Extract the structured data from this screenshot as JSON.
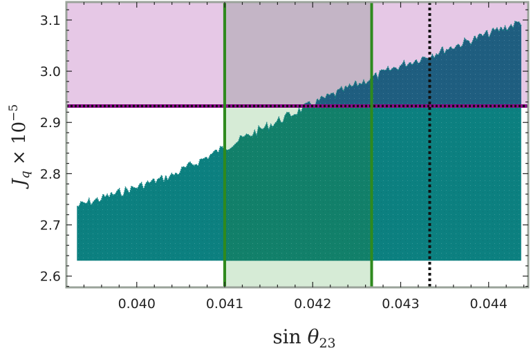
{
  "chart_data": {
    "type": "scatter",
    "xlabel": "sin θ23",
    "ylabel": "J_q × 10^-5",
    "ylabel_parts": {
      "symbol": "J",
      "subscript": "q",
      "times": " × 10",
      "exponent": "−5"
    },
    "xlabel_parts": {
      "func": "sin ",
      "symbol": "θ",
      "subscript": "23"
    },
    "xlim": [
      0.0392,
      0.04445
    ],
    "ylim": [
      2.578,
      3.135
    ],
    "xticks": [
      0.04,
      0.041,
      0.042,
      0.043,
      0.044
    ],
    "xtick_labels": [
      "0.040",
      "0.041",
      "0.042",
      "0.043",
      "0.044"
    ],
    "yticks": [
      2.6,
      2.7,
      2.8,
      2.9,
      3.0,
      3.1
    ],
    "ytick_labels": [
      "2.6",
      "2.7",
      "2.8",
      "2.9",
      "3.0",
      "3.1"
    ],
    "scatter_region": {
      "x_range": [
        0.03932,
        0.04437
      ],
      "y_min": 2.63,
      "upper_edge": [
        [
          0.03932,
          2.745
        ],
        [
          0.0404,
          2.805
        ],
        [
          0.041,
          2.86
        ],
        [
          0.042,
          2.945
        ],
        [
          0.043,
          3.02
        ],
        [
          0.04437,
          3.105
        ]
      ],
      "color": "#0c8080",
      "color_in_band": "#12806a",
      "color_above_line": "#1f5e80"
    },
    "shaded_regions": [
      {
        "name": "excluded-above",
        "y_range": [
          2.932,
          3.135
        ],
        "color": "#e6c8e6"
      },
      {
        "name": "sin-theta23-band",
        "x_range": [
          0.04098,
          0.04267
        ],
        "color": "#cfe8cf"
      }
    ],
    "reference_lines": [
      {
        "orientation": "horizontal",
        "y": 2.932,
        "style": "dotted",
        "color": "#8b0a8b"
      },
      {
        "orientation": "vertical",
        "x": 0.041,
        "style": "solid",
        "color": "#2f8a1e"
      },
      {
        "orientation": "vertical",
        "x": 0.04267,
        "style": "solid",
        "color": "#2f8a1e"
      },
      {
        "orientation": "vertical",
        "x": 0.04333,
        "style": "dotted",
        "color": "#111111"
      }
    ],
    "frame_color": "#9aa39a",
    "grid": false,
    "legend": "none"
  }
}
